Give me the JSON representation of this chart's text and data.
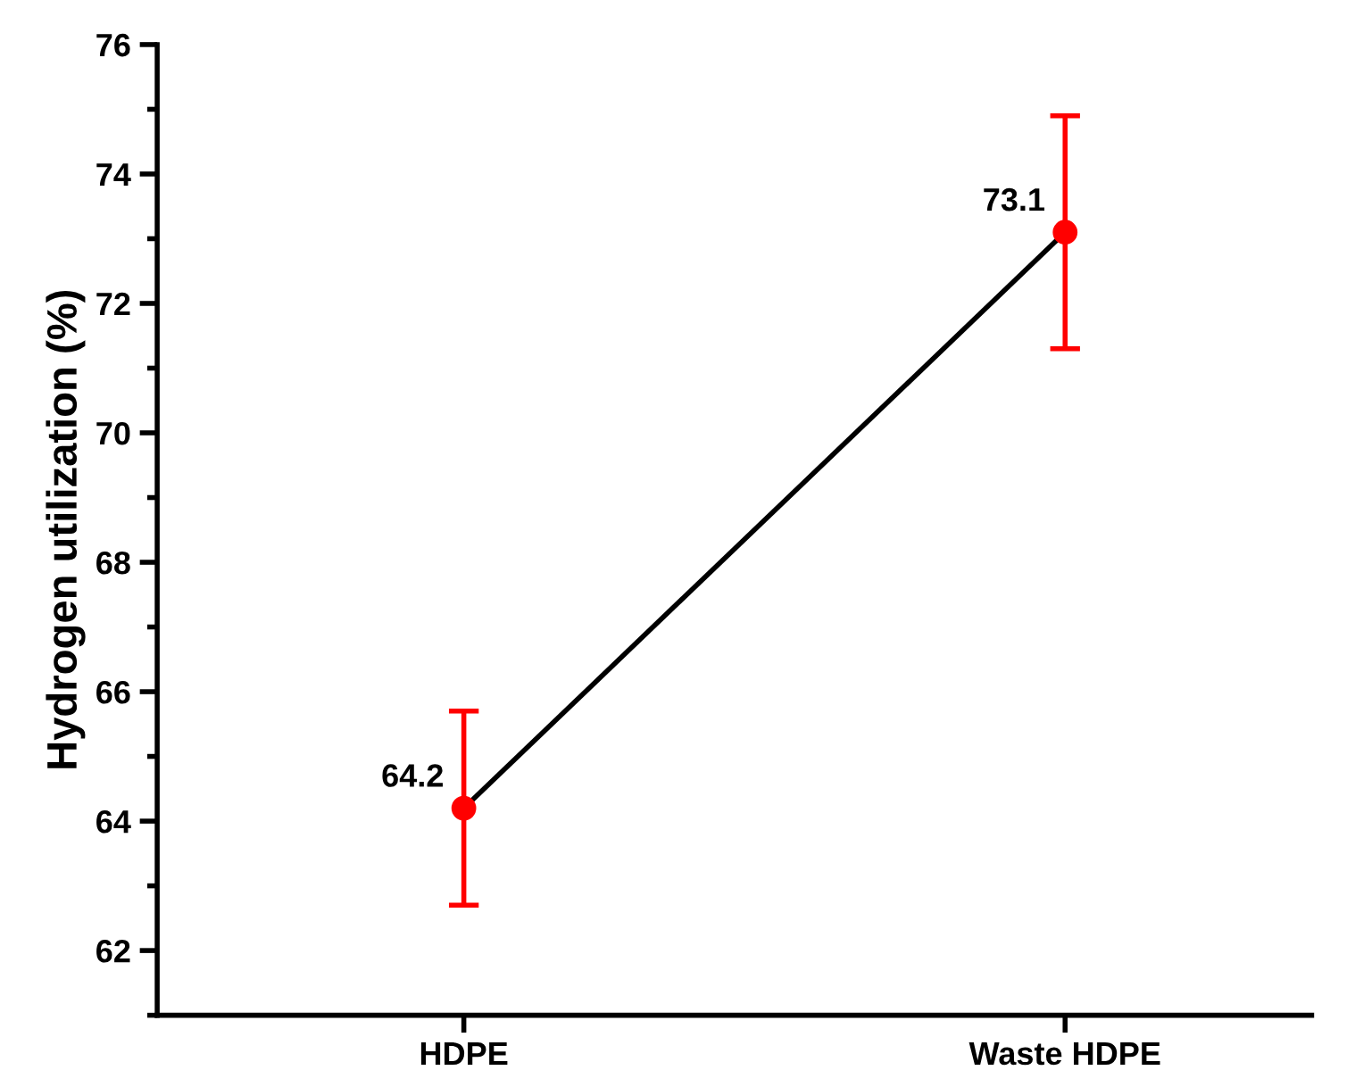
{
  "chart_data": {
    "type": "line",
    "ylabel": "Hydrogen utilization (%)",
    "categories": [
      "HDPE",
      "Waste HDPE"
    ],
    "series": [
      {
        "color": "#000000",
        "values": [
          64.2,
          73.1
        ],
        "marker": "none"
      },
      {
        "type": "scatter",
        "color": "#ff0000",
        "values": [
          64.2,
          73.1
        ],
        "errors": [
          1.5,
          1.8
        ],
        "marker": "circle",
        "data_labels": true
      }
    ],
    "ylim": [
      61,
      76
    ],
    "yticks": [
      62,
      64,
      66,
      68,
      70,
      72,
      74,
      76
    ],
    "grid": false,
    "legend": false
  }
}
